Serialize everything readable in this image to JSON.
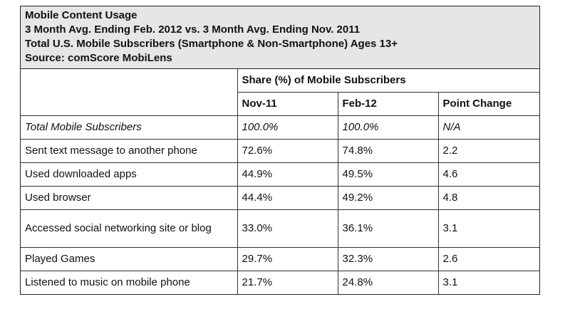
{
  "header": {
    "line1": "Mobile Content Usage",
    "line2": "3 Month Avg. Ending Feb. 2012 vs. 3 Month Avg. Ending Nov. 2011",
    "line3": "Total U.S. Mobile Subscribers (Smartphone & Non-Smartphone) Ages 13+",
    "line4": "Source: comScore MobiLens"
  },
  "table": {
    "group_header": "Share (%) of Mobile Subscribers",
    "columns": [
      "Nov-11",
      "Feb-12",
      "Point Change"
    ],
    "rows": [
      {
        "label": "Total Mobile Subscribers",
        "nov": "100.0%",
        "feb": "100.0%",
        "change": "N/A"
      },
      {
        "label": "Sent text message to another phone",
        "nov": "72.6%",
        "feb": "74.8%",
        "change": "2.2"
      },
      {
        "label": "Used downloaded apps",
        "nov": "44.9%",
        "feb": "49.5%",
        "change": "4.6"
      },
      {
        "label": "Used browser",
        "nov": "44.4%",
        "feb": "49.2%",
        "change": "4.8"
      },
      {
        "label": "Accessed social networking site or blog",
        "nov": "33.0%",
        "feb": "36.1%",
        "change": "3.1"
      },
      {
        "label": "Played Games",
        "nov": "29.7%",
        "feb": "32.3%",
        "change": "2.6"
      },
      {
        "label": "Listened to music on mobile phone",
        "nov": "21.7%",
        "feb": "24.8%",
        "change": "3.1"
      }
    ]
  }
}
